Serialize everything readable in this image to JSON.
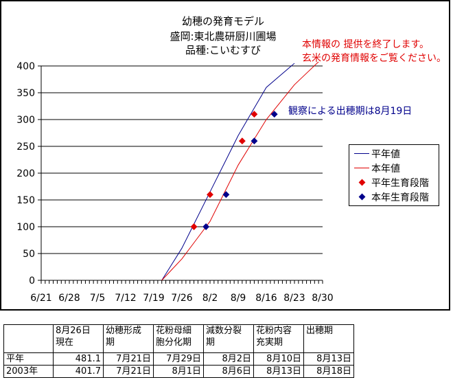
{
  "chart_data": {
    "type": "line",
    "title_lines": [
      "幼穂の発育モデル",
      "盛岡:東北農研厨川圃場",
      "品種:こいむすび"
    ],
    "xlabel": "",
    "ylabel": "",
    "x_tick_labels": [
      "6/21",
      "6/28",
      "7/5",
      "7/12",
      "7/19",
      "7/26",
      "8/2",
      "8/9",
      "8/16",
      "8/23",
      "8/30"
    ],
    "x_ticks": [
      "6/21",
      "6/28",
      "7/5",
      "7/12",
      "7/19",
      "7/26",
      "8/2",
      "8/9",
      "8/16",
      "8/23",
      "8/30"
    ],
    "xlim": [
      "6/21",
      "8/30"
    ],
    "y_ticks": [
      0,
      50,
      100,
      150,
      200,
      250,
      300,
      350,
      400
    ],
    "ylim": [
      0,
      400
    ],
    "grid": "horizontal",
    "legend_position": "right",
    "series": [
      {
        "name": "平年値",
        "kind": "line",
        "color": "#00008b",
        "x": [
          "7/21",
          "7/26",
          "8/2",
          "8/9",
          "8/16",
          "8/23"
        ],
        "y": [
          0,
          60,
          165,
          270,
          360,
          405
        ]
      },
      {
        "name": "本年値",
        "kind": "line",
        "color": "#e00000",
        "x": [
          "7/21",
          "7/26",
          "8/2",
          "8/9",
          "8/16",
          "8/23",
          "8/30"
        ],
        "y": [
          0,
          40,
          110,
          215,
          300,
          365,
          415
        ]
      },
      {
        "name": "平年生育段階",
        "kind": "points",
        "color": "#e00000",
        "x": [
          "7/29",
          "8/2",
          "8/10",
          "8/13"
        ],
        "y": [
          100,
          160,
          260,
          310
        ]
      },
      {
        "name": "本年生育段階",
        "kind": "points",
        "color": "#00008b",
        "x": [
          "8/1",
          "8/6",
          "8/13",
          "8/18"
        ],
        "y": [
          100,
          160,
          260,
          310
        ]
      }
    ],
    "annotation": "観察による出穂期は8月19日",
    "notice_lines": [
      "本情報の 提供を終了します。",
      "玄米の発育情報をご覧ください。"
    ]
  },
  "table": {
    "headers": [
      "",
      "8月26日\n現在",
      "幼穂形成\n期",
      "花粉母細\n胞分化期",
      "減数分裂\n期",
      "花粉内容\n充実期",
      "出穂期"
    ],
    "rows": [
      [
        "平年",
        "481.1",
        "7月21日",
        "7月29日",
        "8月2日",
        "8月10日",
        "8月13日"
      ],
      [
        "2003年",
        "401.7",
        "7月21日",
        "8月1日",
        "8月6日",
        "8月13日",
        "8月18日"
      ]
    ]
  }
}
